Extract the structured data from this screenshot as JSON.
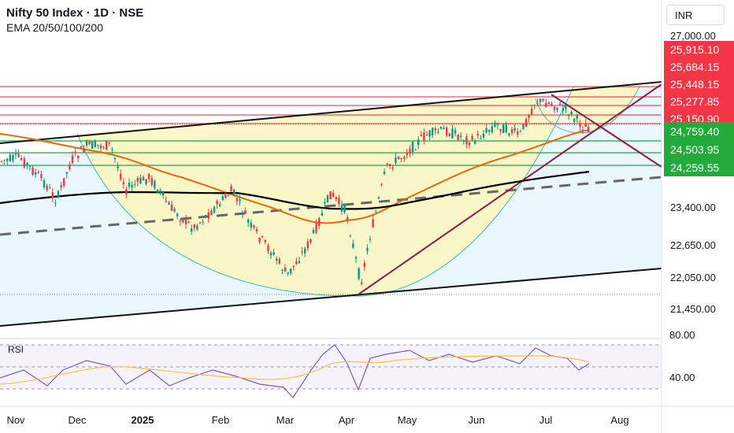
{
  "header": {
    "title": "Nifty 50 Index · 1D · NSE",
    "subtitle": "EMA 20/50/100/200",
    "currency": "INR"
  },
  "chart_data": {
    "type": "candlestick",
    "currency": "INR",
    "x_ticks": [
      "Nov",
      "Dec",
      "2025",
      "Feb",
      "Mar",
      "Apr",
      "May",
      "Jun",
      "Jul",
      "Aug"
    ],
    "y_ticks": [
      {
        "label": "27,000.00",
        "value": 27000
      },
      {
        "label": "23,400.00",
        "value": 23400
      },
      {
        "label": "22,650.00",
        "value": 22650
      },
      {
        "label": "22,050.00",
        "value": 22050
      },
      {
        "label": "21,450.00",
        "value": 21450
      }
    ],
    "resistance_levels": [
      {
        "label": "25,915.10",
        "value": 25915.1
      },
      {
        "label": "25,684.15",
        "value": 25684.15
      },
      {
        "label": "25,448.15",
        "value": 25448.15
      },
      {
        "label": "25,277.85",
        "value": 25277.85
      },
      {
        "label": "25,150.90",
        "value": 25150.9
      }
    ],
    "support_levels": [
      {
        "label": "24,759.40",
        "value": 24759.4
      },
      {
        "label": "24,503.95",
        "value": 24503.95
      },
      {
        "label": "24,259.55",
        "value": 24259.55
      }
    ],
    "overlays": [
      "EMA 20",
      "EMA 50",
      "EMA 100",
      "EMA 200"
    ],
    "rsi": {
      "label": "RSI",
      "y_ticks": [
        {
          "label": "80.00",
          "value": 80
        },
        {
          "label": "40.00",
          "value": 40
        }
      ],
      "bands": [
        70,
        50,
        30
      ]
    },
    "colors": {
      "up": "#089981",
      "down": "#f23645",
      "resistance": "#f23645",
      "support": "#22ab3b",
      "ema_short": "#e8690b",
      "ema_long": "#000000",
      "rsi_line": "#7e57c2",
      "rsi_signal": "#f5c542",
      "cup_fill": "#fbf6c2",
      "channel_fill": "#e5f5fb"
    }
  }
}
